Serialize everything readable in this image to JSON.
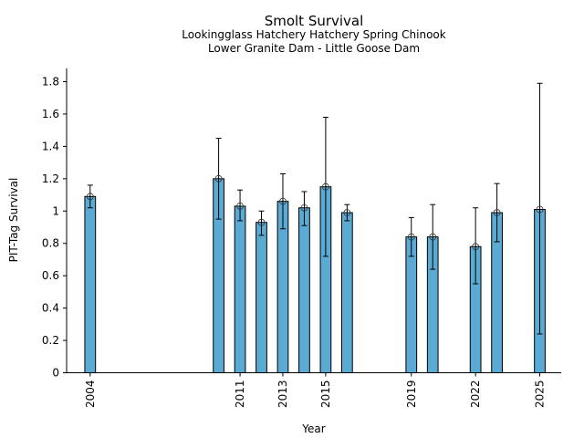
{
  "chart_data": {
    "type": "bar",
    "title": "Smolt Survival",
    "subtitle_lines": [
      "Lookingglass Hatchery Hatchery Spring Chinook",
      "Lower Granite Dam - Little Goose Dam"
    ],
    "xlabel": "Year",
    "ylabel": "PIT-Tag Survival",
    "x": [
      2004,
      2010,
      2011,
      2012,
      2013,
      2014,
      2015,
      2016,
      2019,
      2020,
      2022,
      2023,
      2025
    ],
    "values": [
      1.09,
      1.2,
      1.03,
      0.93,
      1.06,
      1.02,
      1.15,
      0.99,
      0.84,
      0.84,
      0.78,
      0.99,
      1.01
    ],
    "error_upper": [
      1.16,
      1.45,
      1.13,
      1.0,
      1.23,
      1.12,
      1.58,
      1.04,
      0.96,
      1.04,
      1.02,
      1.17,
      1.79
    ],
    "error_lower": [
      1.02,
      0.95,
      0.94,
      0.85,
      0.89,
      0.91,
      0.72,
      0.94,
      0.72,
      0.64,
      0.55,
      0.81,
      0.24
    ],
    "xticks": [
      2004,
      2011,
      2013,
      2015,
      2019,
      2022,
      2025
    ],
    "xtick_labels": [
      "2004",
      "2011",
      "2013",
      "2015",
      "2019",
      "2022",
      "2025"
    ],
    "yticks": [
      0,
      0.2,
      0.4,
      0.6,
      0.8,
      1,
      1.2,
      1.4,
      1.6,
      1.8
    ],
    "ytick_labels": [
      "0",
      "0.2",
      "0.4",
      "0.6",
      "0.8",
      "1",
      "1.2",
      "1.4",
      "1.6",
      "1.8"
    ],
    "xlim": [
      2002.9,
      2026
    ],
    "ylim": [
      0,
      1.88
    ],
    "bar_width_years": 0.5,
    "bar_color": "#5aaad4",
    "edge_color": "#000000",
    "grid": false,
    "legend": "none"
  }
}
